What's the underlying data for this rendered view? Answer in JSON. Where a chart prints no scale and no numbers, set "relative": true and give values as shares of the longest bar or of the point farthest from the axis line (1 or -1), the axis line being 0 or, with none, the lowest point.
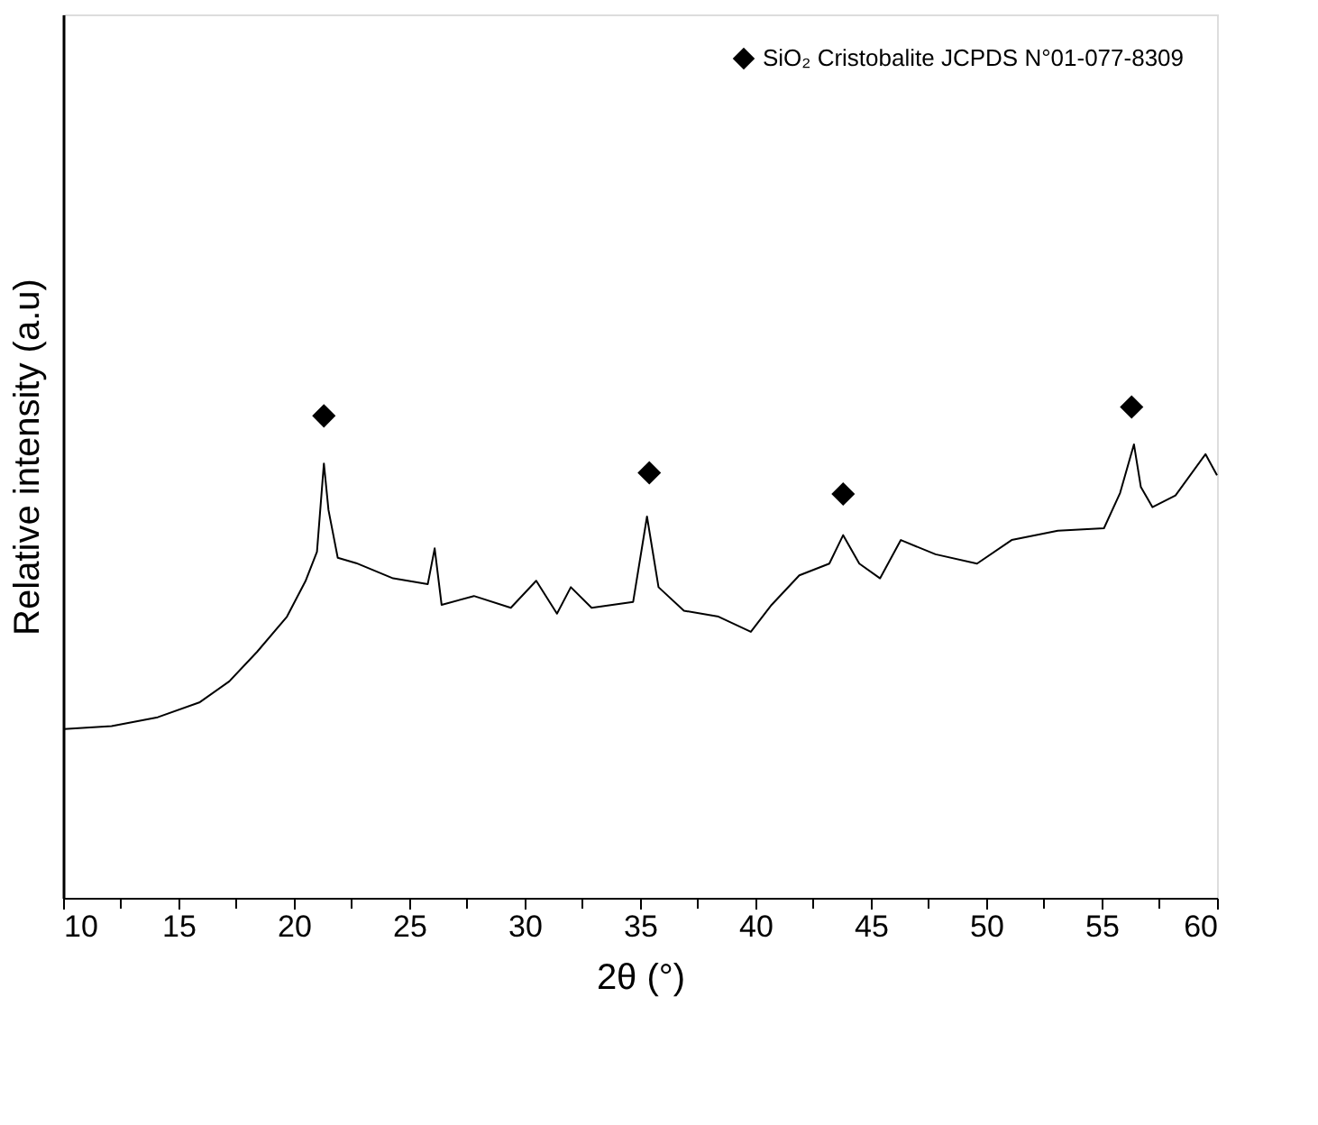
{
  "chart_data": {
    "type": "line",
    "relative": true,
    "xlabel": "2θ (°)",
    "ylabel": "Relative intensity (a.u)",
    "legend": "top right",
    "grid": false,
    "tick_labels": "x",
    "xlim": [
      10,
      60
    ],
    "xticks": [
      10,
      {
        "value": 12.5,
        "label": null
      },
      15,
      {
        "value": 17.5,
        "label": null
      },
      20,
      {
        "value": 22.5,
        "label": null
      },
      25,
      {
        "value": 27.5,
        "label": null
      },
      30,
      {
        "value": 32.5,
        "label": null
      },
      35,
      {
        "value": 37.5,
        "label": null
      },
      40,
      {
        "value": 42.5,
        "label": null
      },
      45,
      {
        "value": 47.5,
        "label": null
      },
      50,
      {
        "value": 52.5,
        "label": null
      },
      55,
      {
        "value": 57.5,
        "label": null
      },
      60
    ],
    "series": [
      {
        "color": "#000000",
        "marker": "none",
        "x": [
          10.05,
          12.1,
          14.1,
          15.9,
          17.2,
          18.4,
          19.7,
          20.5,
          21.0,
          21.3,
          21.5,
          21.9,
          22.7,
          24.3,
          25.8,
          26.1,
          26.4,
          27.8,
          29.4,
          30.5,
          31.4,
          32.0,
          32.9,
          34.7,
          35.3,
          35.8,
          36.9,
          38.4,
          39.8,
          40.7,
          41.9,
          43.2,
          43.8,
          44.5,
          45.4,
          46.3,
          47.8,
          49.6,
          51.1,
          53.1,
          55.1,
          55.8,
          56.4,
          56.7,
          57.2,
          58.2,
          59.5,
          60.0
        ],
        "values": [
          0.344,
          0.35,
          0.368,
          0.398,
          0.441,
          0.501,
          0.573,
          0.645,
          0.705,
          0.885,
          0.79,
          0.693,
          0.682,
          0.651,
          0.639,
          0.712,
          0.597,
          0.615,
          0.591,
          0.646,
          0.579,
          0.633,
          0.591,
          0.603,
          0.777,
          0.633,
          0.585,
          0.573,
          0.542,
          0.597,
          0.657,
          0.681,
          0.739,
          0.681,
          0.651,
          0.729,
          0.7,
          0.681,
          0.729,
          0.748,
          0.753,
          0.825,
          0.924,
          0.837,
          0.796,
          0.82,
          0.904,
          0.861
        ]
      },
      {
        "type": "scatter",
        "name": "SiO₂ Cristobalite JCPDS N°01-077-8309",
        "color": "#000000",
        "marker": "diamond",
        "x": [
          21.3,
          35.4,
          43.8,
          56.3
        ],
        "values": [
          0.982,
          0.866,
          0.823,
          1.0
        ]
      }
    ]
  }
}
